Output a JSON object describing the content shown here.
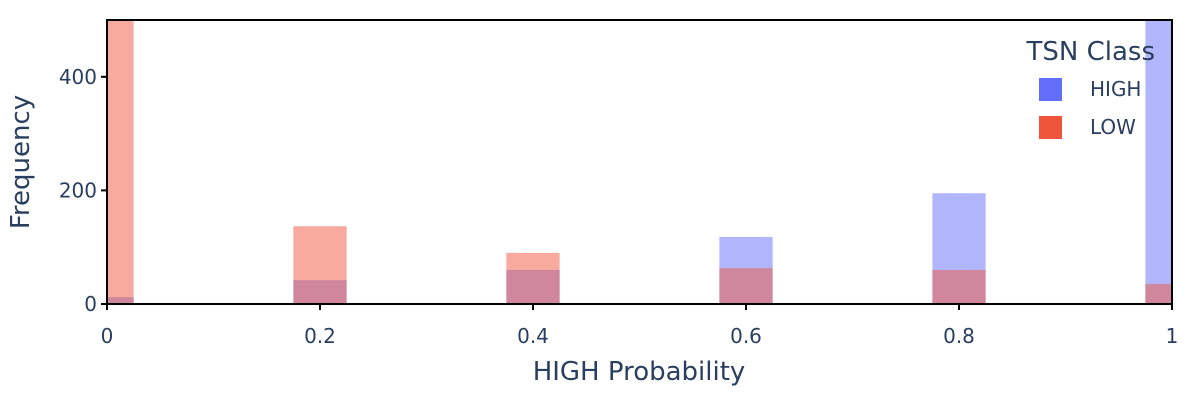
{
  "chart_data": {
    "type": "bar",
    "barmode": "overlay",
    "xlabel": "HIGH Probability",
    "ylabel": "Frequency",
    "xlim": [
      0,
      1
    ],
    "ylim": [
      0,
      500
    ],
    "xticks": [
      {
        "value": 0,
        "label": "0"
      },
      {
        "value": 0.2,
        "label": "0.2"
      },
      {
        "value": 0.4,
        "label": "0.4"
      },
      {
        "value": 0.6,
        "label": "0.6"
      },
      {
        "value": 0.8,
        "label": "0.8"
      },
      {
        "value": 1,
        "label": "1"
      }
    ],
    "yticks": [
      {
        "value": 0,
        "label": "0"
      },
      {
        "value": 200,
        "label": "200"
      },
      {
        "value": 400,
        "label": "400"
      }
    ],
    "bin_width": 0.05,
    "grid": false,
    "legend": {
      "title": "TSN Class",
      "position": "top-right"
    },
    "series": [
      {
        "name": "HIGH",
        "color": "#636efa",
        "opacity": 0.5,
        "x": [
          0,
          0.2,
          0.4,
          0.6,
          0.8,
          1.0
        ],
        "values": [
          12,
          42,
          60,
          118,
          195,
          500
        ]
      },
      {
        "name": "LOW",
        "color": "#ef553b",
        "opacity": 0.5,
        "x": [
          0,
          0.2,
          0.4,
          0.6,
          0.8,
          1.0
        ],
        "values": [
          500,
          137,
          90,
          63,
          60,
          35
        ]
      }
    ]
  }
}
